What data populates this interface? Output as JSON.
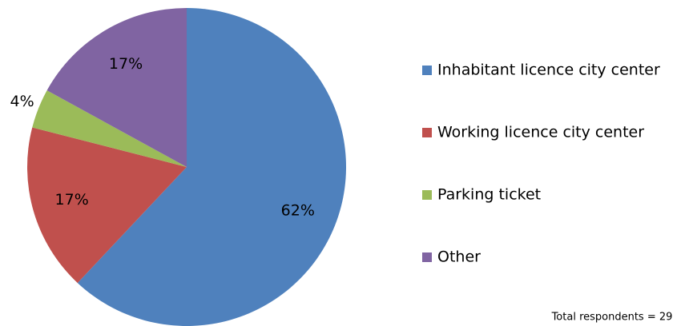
{
  "chart_data": {
    "type": "pie",
    "categories": [
      "Inhabitant licence city center",
      "Working licence city center",
      "Parking ticket",
      "Other"
    ],
    "values": [
      62,
      17,
      4,
      17
    ],
    "value_labels": [
      "62%",
      "17%",
      "4%",
      "17%"
    ],
    "colors": [
      "#4f81bd",
      "#c0504d",
      "#9bbb59",
      "#8064a2"
    ],
    "legend": "right",
    "annotation": "Total respondents = 29"
  }
}
